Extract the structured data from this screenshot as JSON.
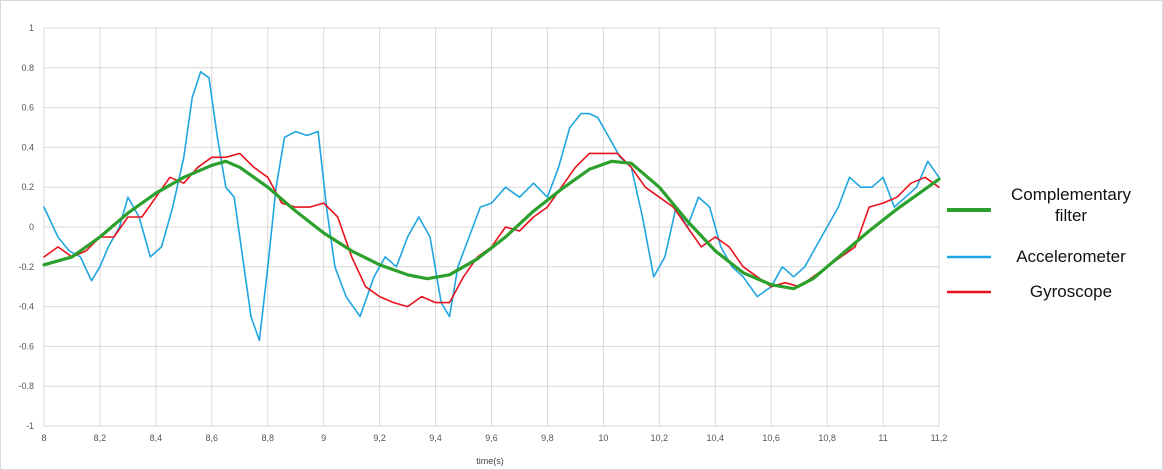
{
  "chart_data": {
    "type": "line",
    "title": "",
    "xlabel": "time(s)",
    "ylabel": "",
    "xlim": [
      8,
      11.2
    ],
    "ylim": [
      -1,
      1
    ],
    "grid": true,
    "legend_position": "right",
    "x_ticks": [
      "8",
      "8,2",
      "8,4",
      "8,6",
      "8,8",
      "9",
      "9,2",
      "9,4",
      "9,6",
      "9,8",
      "10",
      "10,2",
      "10,4",
      "10,6",
      "10,8",
      "11",
      "11,2"
    ],
    "y_ticks": [
      "1",
      "0.8",
      "0.6",
      "0.4",
      "0.2",
      "0",
      "-0.2",
      "-0.4",
      "-0.6",
      "-0.8",
      "-1"
    ],
    "legend_entries": [
      {
        "lines": [
          "Complementary",
          "filter"
        ],
        "color": "#2ca02c"
      },
      {
        "lines": [
          "Accelerometer"
        ],
        "color": "#1fa6e0"
      },
      {
        "lines": [
          "Gyroscope"
        ],
        "color": "#e8121e"
      }
    ],
    "series": [
      {
        "name": "Accelerometer",
        "color": "#1fa6e0",
        "x": [
          8.0,
          8.05,
          8.09,
          8.13,
          8.17,
          8.2,
          8.23,
          8.27,
          8.3,
          8.34,
          8.38,
          8.42,
          8.46,
          8.5,
          8.53,
          8.56,
          8.59,
          8.62,
          8.65,
          8.68,
          8.71,
          8.74,
          8.77,
          8.8,
          8.83,
          8.86,
          8.9,
          8.94,
          8.98,
          9.01,
          9.04,
          9.08,
          9.13,
          9.18,
          9.22,
          9.26,
          9.3,
          9.34,
          9.38,
          9.42,
          9.45,
          9.48,
          9.52,
          9.56,
          9.6,
          9.65,
          9.7,
          9.75,
          9.8,
          9.84,
          9.88,
          9.92,
          9.95,
          9.98,
          10.02,
          10.06,
          10.1,
          10.14,
          10.18,
          10.22,
          10.26,
          10.3,
          10.34,
          10.38,
          10.42,
          10.46,
          10.5,
          10.55,
          10.6,
          10.64,
          10.68,
          10.72,
          10.76,
          10.8,
          10.84,
          10.88,
          10.92,
          10.96,
          11.0,
          11.04,
          11.08,
          11.12,
          11.16,
          11.2
        ],
        "y": [
          0.1,
          -0.05,
          -0.12,
          -0.15,
          -0.27,
          -0.2,
          -0.1,
          0.0,
          0.15,
          0.05,
          -0.15,
          -0.1,
          0.1,
          0.35,
          0.65,
          0.78,
          0.75,
          0.45,
          0.2,
          0.15,
          -0.15,
          -0.45,
          -0.57,
          -0.2,
          0.2,
          0.45,
          0.48,
          0.46,
          0.48,
          0.1,
          -0.2,
          -0.35,
          -0.45,
          -0.25,
          -0.15,
          -0.2,
          -0.05,
          0.05,
          -0.05,
          -0.38,
          -0.45,
          -0.2,
          -0.05,
          0.1,
          0.12,
          0.2,
          0.15,
          0.22,
          0.15,
          0.3,
          0.5,
          0.57,
          0.57,
          0.55,
          0.45,
          0.35,
          0.3,
          0.05,
          -0.25,
          -0.15,
          0.1,
          0.0,
          0.15,
          0.1,
          -0.1,
          -0.2,
          -0.25,
          -0.35,
          -0.3,
          -0.2,
          -0.25,
          -0.2,
          -0.1,
          0.0,
          0.1,
          0.25,
          0.2,
          0.2,
          0.25,
          0.1,
          0.15,
          0.2,
          0.33,
          0.25
        ]
      },
      {
        "name": "Gyroscope",
        "color": "#e8121e",
        "x": [
          8.0,
          8.05,
          8.1,
          8.15,
          8.2,
          8.25,
          8.3,
          8.35,
          8.4,
          8.45,
          8.5,
          8.55,
          8.6,
          8.65,
          8.7,
          8.75,
          8.8,
          8.85,
          8.9,
          8.95,
          9.0,
          9.05,
          9.1,
          9.15,
          9.2,
          9.25,
          9.3,
          9.35,
          9.4,
          9.45,
          9.5,
          9.55,
          9.6,
          9.65,
          9.7,
          9.75,
          9.8,
          9.85,
          9.9,
          9.95,
          10.0,
          10.05,
          10.1,
          10.15,
          10.2,
          10.25,
          10.3,
          10.35,
          10.4,
          10.45,
          10.5,
          10.55,
          10.6,
          10.65,
          10.7,
          10.75,
          10.8,
          10.85,
          10.9,
          10.95,
          11.0,
          11.05,
          11.1,
          11.15,
          11.2
        ],
        "y": [
          -0.15,
          -0.1,
          -0.15,
          -0.12,
          -0.05,
          -0.05,
          0.05,
          0.05,
          0.15,
          0.25,
          0.22,
          0.3,
          0.35,
          0.35,
          0.37,
          0.3,
          0.25,
          0.12,
          0.1,
          0.1,
          0.12,
          0.05,
          -0.15,
          -0.3,
          -0.35,
          -0.38,
          -0.4,
          -0.35,
          -0.38,
          -0.38,
          -0.25,
          -0.15,
          -0.1,
          0.0,
          -0.02,
          0.05,
          0.1,
          0.2,
          0.3,
          0.37,
          0.37,
          0.37,
          0.3,
          0.2,
          0.15,
          0.1,
          0.0,
          -0.1,
          -0.05,
          -0.1,
          -0.2,
          -0.25,
          -0.3,
          -0.28,
          -0.3,
          -0.25,
          -0.2,
          -0.15,
          -0.1,
          0.1,
          0.12,
          0.15,
          0.22,
          0.25,
          0.2
        ]
      },
      {
        "name": "Complementary filter",
        "color": "#2ca02c",
        "x": [
          8.0,
          8.1,
          8.2,
          8.3,
          8.4,
          8.5,
          8.6,
          8.65,
          8.7,
          8.8,
          8.9,
          9.0,
          9.1,
          9.2,
          9.3,
          9.37,
          9.45,
          9.55,
          9.65,
          9.75,
          9.85,
          9.95,
          10.03,
          10.1,
          10.2,
          10.3,
          10.4,
          10.5,
          10.6,
          10.68,
          10.75,
          10.85,
          10.95,
          11.05,
          11.15,
          11.2
        ],
        "y": [
          -0.19,
          -0.15,
          -0.05,
          0.07,
          0.17,
          0.25,
          0.31,
          0.33,
          0.3,
          0.2,
          0.08,
          -0.03,
          -0.12,
          -0.19,
          -0.24,
          -0.26,
          -0.24,
          -0.16,
          -0.05,
          0.08,
          0.19,
          0.29,
          0.33,
          0.32,
          0.2,
          0.03,
          -0.12,
          -0.23,
          -0.29,
          -0.31,
          -0.26,
          -0.14,
          -0.02,
          0.09,
          0.19,
          0.24
        ]
      }
    ]
  }
}
